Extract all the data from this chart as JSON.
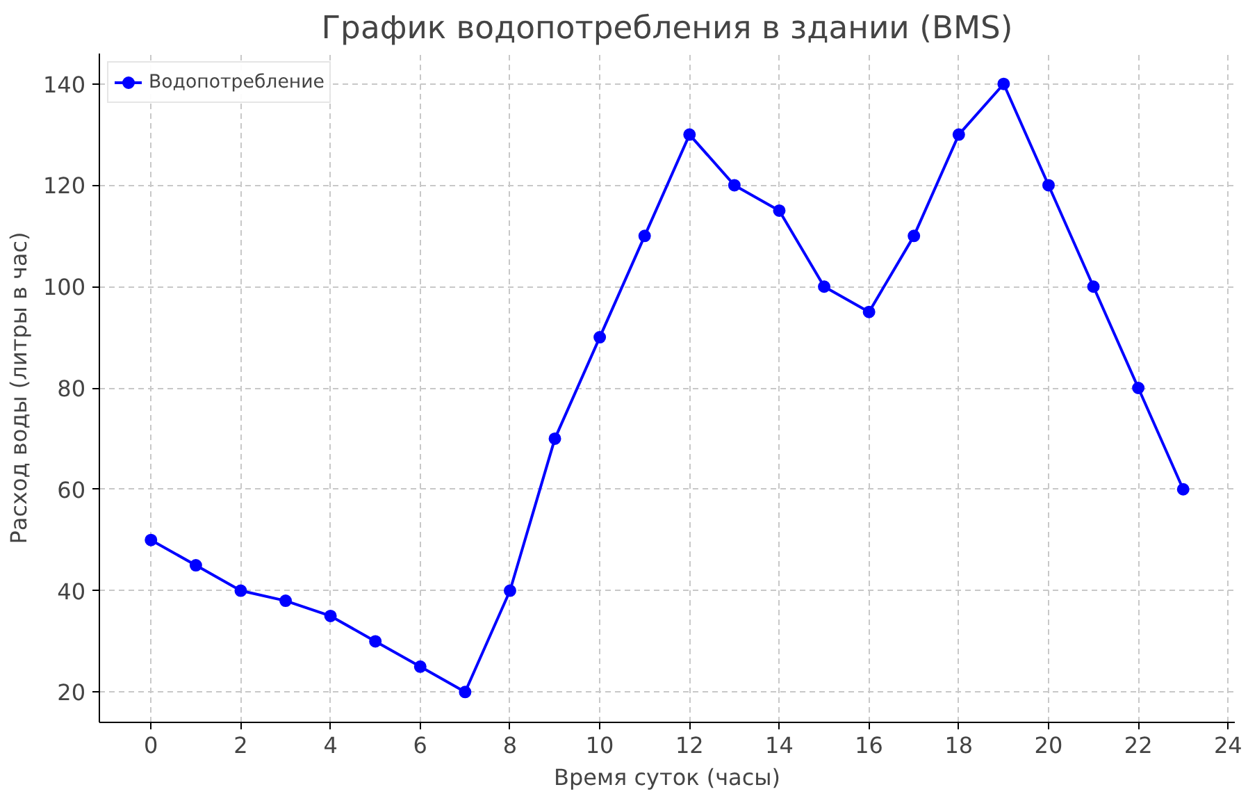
{
  "chart_data": {
    "type": "line",
    "title": "График водопотребления в здании (BMS)",
    "xlabel": "Время суток (часы)",
    "ylabel": "Расход воды (литры в час)",
    "x": [
      0,
      1,
      2,
      3,
      4,
      5,
      6,
      7,
      8,
      9,
      10,
      11,
      12,
      13,
      14,
      15,
      16,
      17,
      18,
      19,
      20,
      21,
      22,
      23
    ],
    "series": [
      {
        "name": "Водопотребление",
        "color": "#0000ff",
        "values": [
          50,
          45,
          40,
          38,
          35,
          30,
          25,
          20,
          40,
          70,
          90,
          110,
          130,
          120,
          115,
          100,
          95,
          110,
          130,
          140,
          120,
          100,
          80,
          60
        ]
      }
    ],
    "xlim": [
      -1.15,
      24.15
    ],
    "ylim": [
      14,
      146
    ],
    "xticks": [
      0,
      2,
      4,
      6,
      8,
      10,
      12,
      14,
      16,
      18,
      20,
      22,
      24
    ],
    "yticks": [
      20,
      40,
      60,
      80,
      100,
      120,
      140
    ],
    "grid": true,
    "legend": "top left",
    "marker": "circle",
    "line_style": "solid"
  }
}
